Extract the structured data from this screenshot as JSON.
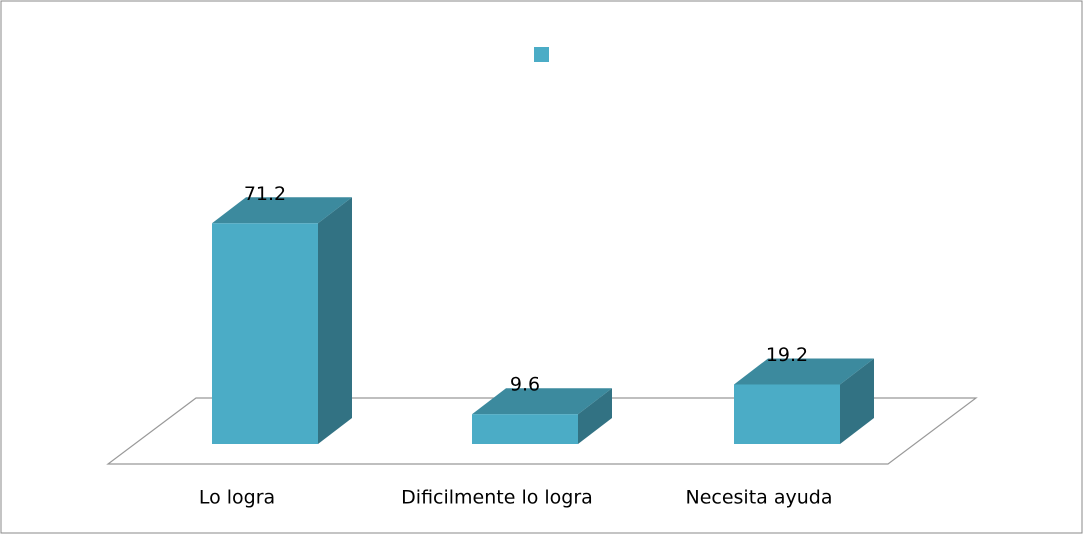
{
  "chart_data": {
    "type": "bar3d",
    "categories": [
      "Lo logra",
      "Dificilmente lo logra",
      "Necesita ayuda"
    ],
    "values": [
      71.2,
      9.6,
      19.2
    ],
    "color": "#4bacc6",
    "legend": "top"
  }
}
